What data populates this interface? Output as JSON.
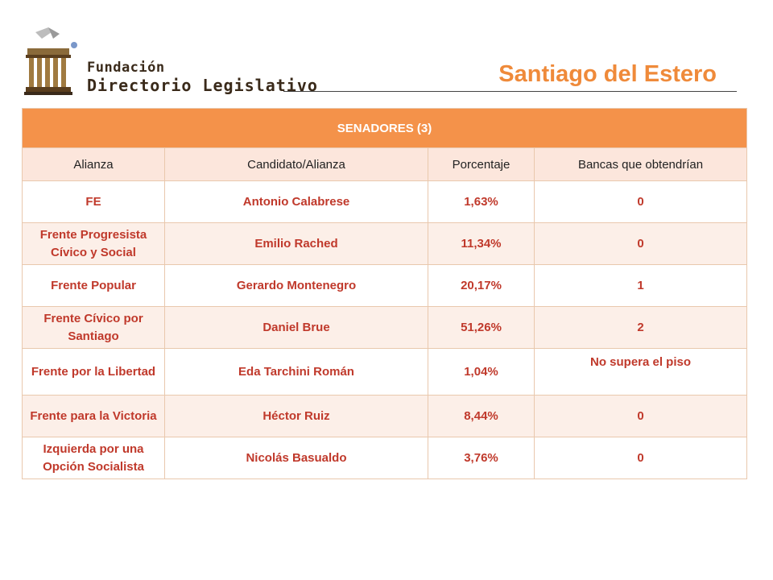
{
  "logo": {
    "line1": "Fundación",
    "line2": "Directorio Legislativo"
  },
  "title": "Santiago del Estero",
  "table": {
    "heading": "SENADORES (3)",
    "columns": [
      "Alianza",
      "Candidato/Alianza",
      "Porcentaje",
      "Bancas que obtendrían"
    ],
    "rows": [
      {
        "alianza": "FE",
        "candidato": "Antonio Calabrese",
        "porcentaje": "1,63%",
        "bancas": "0"
      },
      {
        "alianza": "Frente Progresista Cívico y Social",
        "candidato": "Emilio Rached",
        "porcentaje": "11,34%",
        "bancas": "0"
      },
      {
        "alianza": "Frente Popular",
        "candidato": "Gerardo Montenegro",
        "porcentaje": "20,17%",
        "bancas": "1"
      },
      {
        "alianza": "Frente Cívico por Santiago",
        "candidato": "Daniel Brue",
        "porcentaje": "51,26%",
        "bancas": "2"
      },
      {
        "alianza": "Frente por la Libertad",
        "candidato": "Eda Tarchini Román",
        "porcentaje": "1,04%",
        "bancas": "No supera el piso"
      },
      {
        "alianza": "Frente para la Victoria",
        "candidato": "Héctor Ruiz",
        "porcentaje": "8,44%",
        "bancas": "0"
      },
      {
        "alianza": "Izquierda por una Opción Socialista",
        "candidato": "Nicolás Basualdo",
        "porcentaje": "3,76%",
        "bancas": "0"
      }
    ]
  },
  "colors": {
    "header_bg": "#f4924a",
    "subheader_bg": "#fce6dc",
    "accent_text": "#c0392b",
    "title": "#ef8a3a"
  }
}
